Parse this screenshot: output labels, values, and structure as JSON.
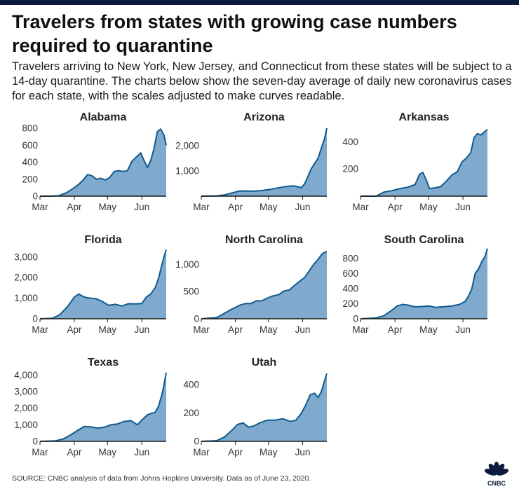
{
  "header": {
    "title": "Travelers from states with growing case numbers required to quarantine",
    "subtitle": "Travelers arriving to New York, New Jersey, and Connecticut from these states will be subject to a 14-day quarantine. The charts below show the seven-day average of daily new coronavirus cases for each state, with the scales adjusted to make curves readable."
  },
  "footer": {
    "source": "SOURCE: CNBC analysis of data from Johns Hopkins University. Data as of June 23, 2020.",
    "logo_text": "CNBC"
  },
  "colors": {
    "area_fill": "#7fa9cd",
    "line": "#0f5a8e",
    "axis": "#1a1a1a",
    "topbar": "#0d1b3e"
  },
  "chart_data": [
    {
      "type": "area",
      "title": "Alabama",
      "x_ticks": [
        "Mar",
        "Apr",
        "May",
        "Jun"
      ],
      "x_range": [
        "Mar 1",
        "Jun 23"
      ],
      "ylim": [
        0,
        800
      ],
      "y_ticks": [
        0,
        200,
        400,
        600,
        800
      ],
      "y_tick_labels": [
        "0",
        "200",
        "400",
        "600",
        "800"
      ],
      "grid": false,
      "x": [
        "Mar 1",
        "Mar 10",
        "Mar 18",
        "Mar 25",
        "Apr 1",
        "Apr 5",
        "Apr 9",
        "Apr 13",
        "Apr 17",
        "Apr 21",
        "Apr 25",
        "Apr 29",
        "May 3",
        "May 7",
        "May 11",
        "May 15",
        "May 19",
        "May 23",
        "May 27",
        "May 31",
        "Jun 3",
        "Jun 6",
        "Jun 9",
        "Jun 12",
        "Jun 15",
        "Jun 18",
        "Jun 21",
        "Jun 23"
      ],
      "y": [
        0,
        0,
        5,
        40,
        100,
        140,
        190,
        255,
        240,
        200,
        210,
        190,
        220,
        290,
        300,
        290,
        300,
        410,
        460,
        510,
        420,
        340,
        420,
        560,
        760,
        790,
        720,
        600
      ]
    },
    {
      "type": "area",
      "title": "Arizona",
      "x_ticks": [
        "Mar",
        "Apr",
        "May",
        "Jun"
      ],
      "x_range": [
        "Mar 1",
        "Jun 23"
      ],
      "ylim": [
        0,
        2700
      ],
      "y_ticks": [
        1000,
        2000
      ],
      "y_tick_labels": [
        "1,000",
        "2,000"
      ],
      "grid": false,
      "x": [
        "Mar 1",
        "Mar 15",
        "Mar 22",
        "Mar 29",
        "Apr 5",
        "Apr 12",
        "Apr 19",
        "Apr 26",
        "May 3",
        "May 10",
        "May 17",
        "May 24",
        "May 31",
        "Jun 3",
        "Jun 6",
        "Jun 9",
        "Jun 12",
        "Jun 15",
        "Jun 18",
        "Jun 21",
        "Jun 23"
      ],
      "y": [
        0,
        10,
        50,
        130,
        210,
        200,
        200,
        230,
        270,
        330,
        380,
        410,
        340,
        500,
        800,
        1100,
        1300,
        1500,
        1900,
        2300,
        2700
      ]
    },
    {
      "type": "area",
      "title": "Arkansas",
      "x_ticks": [
        "Mar",
        "Apr",
        "May",
        "Jun"
      ],
      "x_range": [
        "Mar 1",
        "Jun 23"
      ],
      "ylim": [
        0,
        500
      ],
      "y_ticks": [
        200,
        400
      ],
      "y_tick_labels": [
        "200",
        "400"
      ],
      "grid": false,
      "x": [
        "Mar 1",
        "Mar 15",
        "Mar 22",
        "Mar 29",
        "Apr 5",
        "Apr 12",
        "Apr 19",
        "Apr 23",
        "Apr 26",
        "Apr 29",
        "May 2",
        "May 6",
        "May 12",
        "May 17",
        "May 22",
        "May 27",
        "May 31",
        "Jun 4",
        "Jun 8",
        "Jun 11",
        "Jun 14",
        "Jun 17",
        "Jun 20",
        "Jun 23"
      ],
      "y": [
        0,
        0,
        30,
        40,
        55,
        65,
        85,
        160,
        175,
        120,
        55,
        60,
        70,
        110,
        155,
        180,
        250,
        280,
        320,
        430,
        460,
        450,
        470,
        490
      ]
    },
    {
      "type": "area",
      "title": "Florida",
      "x_ticks": [
        "Mar",
        "Apr",
        "May",
        "Jun"
      ],
      "x_range": [
        "Mar 1",
        "Jun 23"
      ],
      "ylim": [
        0,
        3300
      ],
      "y_ticks": [
        0,
        1000,
        2000,
        3000
      ],
      "y_tick_labels": [
        "0",
        "1,000",
        "2,000",
        "3,000"
      ],
      "grid": false,
      "x": [
        "Mar 1",
        "Mar 12",
        "Mar 19",
        "Mar 26",
        "Apr 1",
        "Apr 5",
        "Apr 10",
        "Apr 15",
        "Apr 20",
        "Apr 26",
        "May 2",
        "May 8",
        "May 14",
        "May 20",
        "May 26",
        "Jun 1",
        "Jun 5",
        "Jun 9",
        "Jun 13",
        "Jun 16",
        "Jun 19",
        "Jun 21",
        "Jun 23"
      ],
      "y": [
        0,
        20,
        200,
        600,
        1050,
        1200,
        1050,
        1000,
        980,
        850,
        650,
        700,
        620,
        730,
        720,
        740,
        1050,
        1200,
        1500,
        1950,
        2600,
        3000,
        3350
      ]
    },
    {
      "type": "area",
      "title": "North Carolina",
      "x_ticks": [
        "Mar",
        "Apr",
        "May",
        "Jun"
      ],
      "x_range": [
        "Mar 1",
        "Jun 23"
      ],
      "ylim": [
        0,
        1250
      ],
      "y_ticks": [
        0,
        500,
        1000
      ],
      "y_tick_labels": [
        "0",
        "500",
        "1,000"
      ],
      "grid": false,
      "x": [
        "Mar 1",
        "Mar 15",
        "Mar 22",
        "Mar 29",
        "Apr 5",
        "Apr 10",
        "Apr 15",
        "Apr 20",
        "Apr 25",
        "Apr 30",
        "May 5",
        "May 10",
        "May 15",
        "May 20",
        "May 25",
        "May 30",
        "Jun 3",
        "Jun 7",
        "Jun 11",
        "Jun 15",
        "Jun 19",
        "Jun 23"
      ],
      "y": [
        0,
        20,
        100,
        180,
        250,
        280,
        280,
        330,
        330,
        380,
        420,
        440,
        510,
        530,
        620,
        700,
        760,
        880,
        1000,
        1090,
        1200,
        1240
      ]
    },
    {
      "type": "area",
      "title": "South Carolina",
      "x_ticks": [
        "Mar",
        "Apr",
        "May",
        "Jun"
      ],
      "x_range": [
        "Mar 1",
        "Jun 23"
      ],
      "ylim": [
        0,
        900
      ],
      "y_ticks": [
        0,
        200,
        400,
        600,
        800
      ],
      "y_tick_labels": [
        "0",
        "200",
        "400",
        "600",
        "800"
      ],
      "grid": false,
      "x": [
        "Mar 1",
        "Mar 15",
        "Mar 22",
        "Mar 29",
        "Apr 3",
        "Apr 8",
        "Apr 13",
        "Apr 18",
        "Apr 24",
        "May 1",
        "May 8",
        "May 15",
        "May 22",
        "May 29",
        "Jun 3",
        "Jun 6",
        "Jun 9",
        "Jun 12",
        "Jun 15",
        "Jun 18",
        "Jun 21",
        "Jun 23"
      ],
      "y": [
        0,
        10,
        40,
        110,
        170,
        190,
        180,
        160,
        160,
        170,
        150,
        160,
        170,
        190,
        230,
        300,
        400,
        600,
        660,
        760,
        830,
        930
      ]
    },
    {
      "type": "area",
      "title": "Texas",
      "x_ticks": [
        "Mar",
        "Apr",
        "May",
        "Jun"
      ],
      "x_range": [
        "Mar 1",
        "Jun 23"
      ],
      "ylim": [
        0,
        4100
      ],
      "y_ticks": [
        0,
        1000,
        2000,
        3000,
        4000
      ],
      "y_tick_labels": [
        "0",
        "1,000",
        "2,000",
        "3,000",
        "4,000"
      ],
      "grid": false,
      "x": [
        "Mar 1",
        "Mar 15",
        "Mar 22",
        "Mar 29",
        "Apr 5",
        "Apr 10",
        "Apr 16",
        "Apr 22",
        "Apr 28",
        "May 4",
        "May 10",
        "May 16",
        "May 22",
        "May 28",
        "Jun 2",
        "Jun 6",
        "Jun 10",
        "Jun 13",
        "Jun 16",
        "Jun 19",
        "Jun 21",
        "Jun 23"
      ],
      "y": [
        0,
        30,
        150,
        400,
        700,
        900,
        870,
        800,
        850,
        1000,
        1050,
        1200,
        1250,
        1000,
        1350,
        1600,
        1700,
        1750,
        2100,
        2800,
        3400,
        4150
      ]
    },
    {
      "type": "area",
      "title": "Utah",
      "x_ticks": [
        "Mar",
        "Apr",
        "May",
        "Jun"
      ],
      "x_range": [
        "Mar 1",
        "Jun 23"
      ],
      "ylim": [
        0,
        480
      ],
      "y_ticks": [
        0,
        200,
        400
      ],
      "y_tick_labels": [
        "0",
        "200",
        "400"
      ],
      "grid": false,
      "x": [
        "Mar 1",
        "Mar 15",
        "Mar 22",
        "Mar 29",
        "Apr 3",
        "Apr 8",
        "Apr 13",
        "Apr 18",
        "Apr 23",
        "Apr 30",
        "May 7",
        "May 14",
        "May 21",
        "May 26",
        "May 31",
        "Jun 4",
        "Jun 8",
        "Jun 12",
        "Jun 15",
        "Jun 18",
        "Jun 21",
        "Jun 23"
      ],
      "y": [
        0,
        5,
        30,
        80,
        120,
        130,
        100,
        110,
        130,
        150,
        150,
        160,
        140,
        150,
        200,
        260,
        330,
        340,
        310,
        350,
        430,
        480
      ]
    }
  ]
}
